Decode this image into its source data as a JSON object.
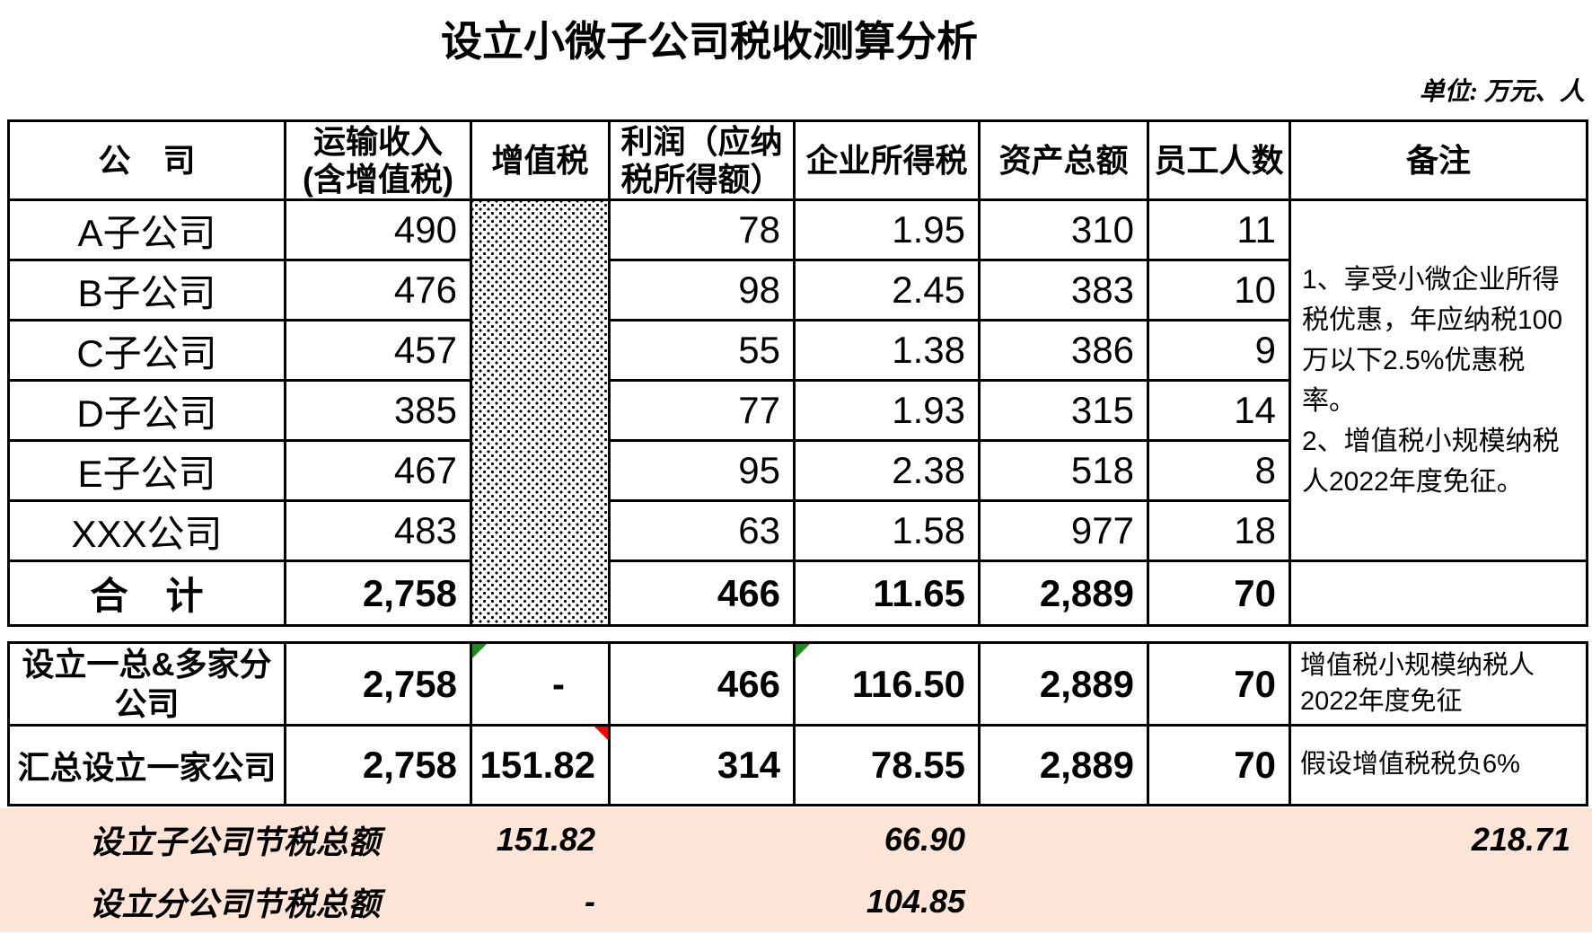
{
  "title": "设立小微子公司税收测算分析",
  "unit_note": "单位: 万元、人",
  "colors": {
    "summary_bg": "#fce4d6",
    "marker_green": "#1c8a1c",
    "marker_red": "#ff0000",
    "border": "#000000"
  },
  "table1": {
    "headers": {
      "company": "公　司",
      "revenue": "运输收入\n(含增值税)",
      "vat": "增值税",
      "profit": "利润（应纳\n税所得额）",
      "income_tax": "企业所得税",
      "assets": "资产总额",
      "employees": "员工人数",
      "remark": "备注"
    },
    "rows": [
      {
        "company": "A子公司",
        "revenue": "490",
        "profit": "78",
        "income_tax": "1.95",
        "assets": "310",
        "employees": "11"
      },
      {
        "company": "B子公司",
        "revenue": "476",
        "profit": "98",
        "income_tax": "2.45",
        "assets": "383",
        "employees": "10"
      },
      {
        "company": "C子公司",
        "revenue": "457",
        "profit": "55",
        "income_tax": "1.38",
        "assets": "386",
        "employees": "9"
      },
      {
        "company": "D子公司",
        "revenue": "385",
        "profit": "77",
        "income_tax": "1.93",
        "assets": "315",
        "employees": "14"
      },
      {
        "company": "E子公司",
        "revenue": "467",
        "profit": "95",
        "income_tax": "2.38",
        "assets": "518",
        "employees": "8"
      },
      {
        "company": "XXX公司",
        "revenue": "483",
        "profit": "63",
        "income_tax": "1.58",
        "assets": "977",
        "employees": "18"
      }
    ],
    "total": {
      "label": "合　计",
      "revenue": "2,758",
      "profit": "466",
      "income_tax": "11.65",
      "assets": "2,889",
      "employees": "70"
    },
    "remark": "1、享受小微企业所得税优惠，年应纳税100万以下2.5%优惠税率。\n2、增值税小规模纳税人2022年度免征。"
  },
  "table2": {
    "rows": [
      {
        "label": "设立一总&多家分公司",
        "revenue": "2,758",
        "vat": "-",
        "profit": "466",
        "income_tax": "116.50",
        "assets": "2,889",
        "employees": "70",
        "remark": "增值税小规模纳税人\n2022年度免征"
      },
      {
        "label": "汇总设立一家公司",
        "revenue": "2,758",
        "vat": "151.82",
        "profit": "314",
        "income_tax": "78.55",
        "assets": "2,889",
        "employees": "70",
        "remark": "假设增值税税负6%"
      }
    ]
  },
  "summary": {
    "rows": [
      {
        "label": "设立子公司节税总额",
        "vat_saving": "151.82",
        "income_tax_saving": "66.90",
        "total_saving": "218.71"
      },
      {
        "label": "设立分公司节税总额",
        "vat_saving": "-",
        "income_tax_saving": "104.85",
        "total_saving": ""
      }
    ]
  }
}
